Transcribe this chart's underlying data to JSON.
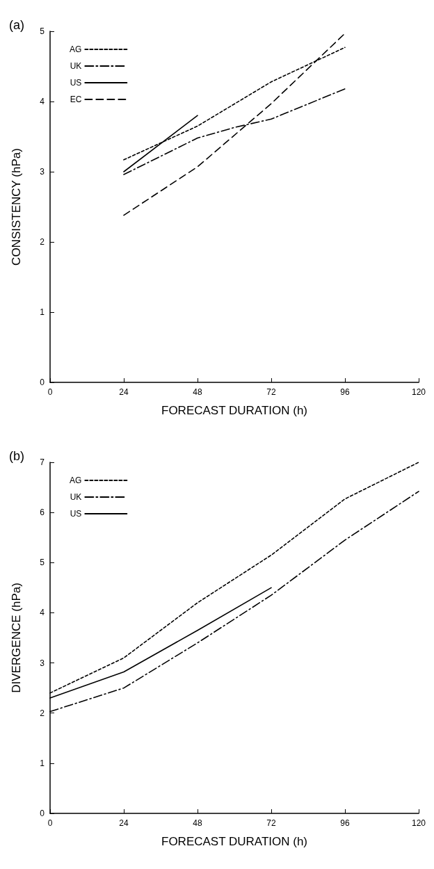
{
  "chart_data": [
    {
      "type": "line",
      "title": "(a)",
      "xlabel": "FORECAST DURATION (h)",
      "ylabel": "CONSISTENCY (hPa)",
      "xlim": [
        0,
        120
      ],
      "xticks": [
        0,
        24,
        48,
        72,
        96,
        120
      ],
      "ylim": [
        0,
        5
      ],
      "yticks": [
        0,
        1,
        2,
        3,
        4,
        5
      ],
      "legend": "top left",
      "grid": false,
      "marker": "none",
      "series": [
        {
          "name": "AG",
          "color": "#000000",
          "line_style": "dotted",
          "x": [
            24,
            48,
            72,
            96
          ],
          "values": [
            3.17,
            3.65,
            4.28,
            4.77
          ]
        },
        {
          "name": "UK",
          "color": "#000000",
          "line_style": "dashdot",
          "x": [
            24,
            48,
            60,
            72,
            96
          ],
          "values": [
            2.96,
            3.48,
            3.63,
            3.75,
            4.18
          ]
        },
        {
          "name": "US",
          "color": "#000000",
          "line_style": "solid",
          "x": [
            24,
            48
          ],
          "values": [
            3.0,
            3.8
          ]
        },
        {
          "name": "EC",
          "color": "#000000",
          "line_style": "dashed",
          "x": [
            24,
            48,
            72,
            96
          ],
          "values": [
            2.38,
            3.07,
            3.97,
            4.97
          ]
        }
      ]
    },
    {
      "type": "line",
      "title": "(b)",
      "xlabel": "FORECAST DURATION (h)",
      "ylabel": "DIVERGENCE (hPa)",
      "xlim": [
        0,
        120
      ],
      "xticks": [
        0,
        24,
        48,
        72,
        96,
        120
      ],
      "ylim": [
        0,
        7
      ],
      "yticks": [
        0,
        1,
        2,
        3,
        4,
        5,
        6,
        7
      ],
      "legend": "top left",
      "grid": false,
      "marker": "none",
      "series": [
        {
          "name": "AG",
          "color": "#000000",
          "line_style": "dotted",
          "x": [
            0,
            24,
            48,
            72,
            96,
            120
          ],
          "values": [
            2.4,
            3.1,
            4.2,
            5.15,
            6.27,
            7.0
          ]
        },
        {
          "name": "UK",
          "color": "#000000",
          "line_style": "dashdot",
          "x": [
            0,
            24,
            48,
            72,
            96,
            120
          ],
          "values": [
            2.03,
            2.5,
            3.4,
            4.35,
            5.45,
            6.42
          ]
        },
        {
          "name": "US",
          "color": "#000000",
          "line_style": "solid",
          "x": [
            0,
            24,
            48,
            72
          ],
          "values": [
            2.3,
            2.82,
            3.65,
            4.5
          ]
        }
      ]
    }
  ]
}
